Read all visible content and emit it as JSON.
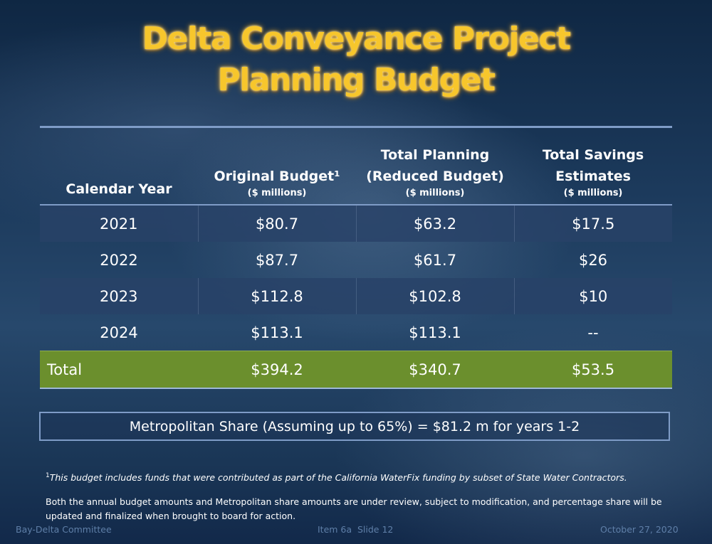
{
  "title": {
    "line1": "Delta Conveyance Project",
    "line2": "Planning Budget"
  },
  "table": {
    "headers": {
      "year": "Calendar Year",
      "original": "Original Budget¹",
      "original_unit": "($ millions)",
      "planning_line1": "Total Planning",
      "planning_line2": "(Reduced Budget)",
      "planning_unit": "($ millions)",
      "savings_line1": "Total Savings",
      "savings_line2": "Estimates",
      "savings_unit": "($ millions)"
    },
    "rows": [
      {
        "year": "2021",
        "original": "$80.7",
        "planning": "$63.2",
        "savings": "$17.5"
      },
      {
        "year": "2022",
        "original": "$87.7",
        "planning": "$61.7",
        "savings": "$26"
      },
      {
        "year": "2023",
        "original": "$112.8",
        "planning": "$102.8",
        "savings": "$10"
      },
      {
        "year": "2024",
        "original": "$113.1",
        "planning": "$113.1",
        "savings": "--"
      }
    ],
    "total": {
      "label": "Total",
      "original": "$394.2",
      "planning": "$340.7",
      "savings": "$53.5"
    }
  },
  "share": "Metropolitan Share (Assuming up to 65%) = $81.2 m for years 1-2",
  "footnote": {
    "marker": "1",
    "text": "This budget includes funds that were contributed as part of the California WaterFix funding by subset of State Water Contractors."
  },
  "note": "Both the annual budget amounts and Metropolitan share amounts are under review, subject to modification, and percentage share will be updated and finalized when brought to board for action.",
  "footer": {
    "left": "Bay-Delta Committee",
    "center": "Item 6a  Slide 12",
    "right": "October 27, 2020"
  },
  "colors": {
    "title": "#f7c62c",
    "total_row": "#6b8f2d",
    "table_rule": "#7f9cc7",
    "footer_text": "#5f7fa8"
  }
}
